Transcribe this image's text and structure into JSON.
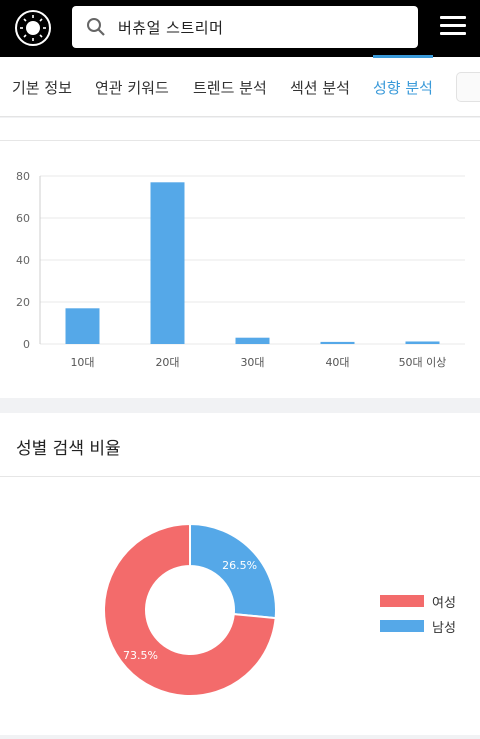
{
  "header": {
    "search_value": "버츄얼 스트리머",
    "logo_icon": "sun-logo-icon",
    "search_icon": "search-icon",
    "menu_icon": "hamburger-menu-icon"
  },
  "tabs": [
    {
      "label": "기본 정보",
      "active": false
    },
    {
      "label": "연관 키워드",
      "active": false
    },
    {
      "label": "트렌드 분석",
      "active": false
    },
    {
      "label": "섹션 분석",
      "active": false
    },
    {
      "label": "성향 분석",
      "active": true
    }
  ],
  "colors": {
    "accent": "#3a9ad9",
    "bar": "#55a8e8",
    "female": "#f36b6b",
    "male": "#55a8e8"
  },
  "age_section": {
    "chart_data": {
      "type": "bar",
      "categories": [
        "10대",
        "20대",
        "30대",
        "40대",
        "50대 이상"
      ],
      "values": [
        17,
        77,
        3,
        1,
        1.2
      ],
      "ylim": [
        0,
        80
      ],
      "yticks": [
        "0",
        "20",
        "40",
        "60",
        "80"
      ],
      "grid": true
    }
  },
  "gender_section": {
    "title": "성별 검색 비율",
    "chart_data": {
      "type": "pie",
      "labels": [
        "여성",
        "남성"
      ],
      "values": [
        73.5,
        26.5
      ],
      "value_labels": [
        "73.5%",
        "26.5%"
      ],
      "legend": "right"
    }
  }
}
